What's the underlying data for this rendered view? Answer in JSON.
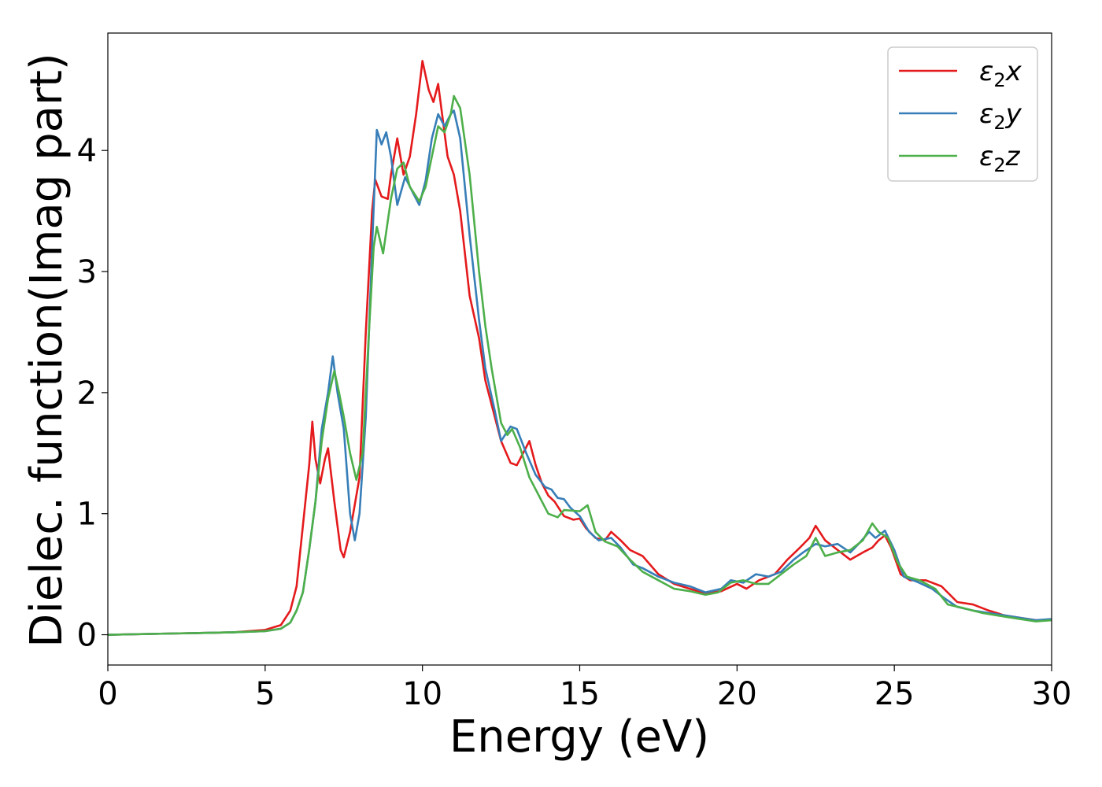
{
  "chart_data": {
    "type": "line",
    "title": "",
    "xlabel": "Energy (eV)",
    "ylabel": "Dielec. function(Imag part)",
    "xlim": [
      0,
      30
    ],
    "ylim": [
      -0.25,
      4.97
    ],
    "x_ticks": [
      0,
      5,
      10,
      15,
      20,
      25,
      30
    ],
    "y_ticks": [
      0,
      1,
      2,
      3,
      4
    ],
    "x_tick_labels": [
      "0",
      "5",
      "10",
      "15",
      "20",
      "25",
      "30"
    ],
    "y_tick_labels": [
      "0",
      "1",
      "2",
      "3",
      "4"
    ],
    "grid": false,
    "legend_position": "top-right",
    "series": [
      {
        "name": "ε2x",
        "legend_base": "ε",
        "legend_sub": "2",
        "legend_var": "x",
        "color": "#e41a1c",
        "points": [
          [
            0,
            0
          ],
          [
            2,
            0.01
          ],
          [
            4,
            0.02
          ],
          [
            5,
            0.04
          ],
          [
            5.5,
            0.08
          ],
          [
            5.8,
            0.2
          ],
          [
            6,
            0.4
          ],
          [
            6.2,
            0.9
          ],
          [
            6.4,
            1.4
          ],
          [
            6.5,
            1.76
          ],
          [
            6.6,
            1.45
          ],
          [
            6.75,
            1.25
          ],
          [
            6.9,
            1.45
          ],
          [
            7.0,
            1.54
          ],
          [
            7.2,
            1.1
          ],
          [
            7.4,
            0.7
          ],
          [
            7.5,
            0.64
          ],
          [
            7.7,
            0.85
          ],
          [
            8.0,
            1.3
          ],
          [
            8.2,
            2.5
          ],
          [
            8.4,
            3.5
          ],
          [
            8.5,
            3.76
          ],
          [
            8.7,
            3.62
          ],
          [
            8.9,
            3.6
          ],
          [
            9.0,
            3.8
          ],
          [
            9.2,
            4.1
          ],
          [
            9.4,
            3.8
          ],
          [
            9.6,
            3.95
          ],
          [
            9.8,
            4.3
          ],
          [
            10.0,
            4.74
          ],
          [
            10.2,
            4.5
          ],
          [
            10.35,
            4.4
          ],
          [
            10.5,
            4.55
          ],
          [
            10.6,
            4.35
          ],
          [
            10.8,
            3.95
          ],
          [
            11.0,
            3.8
          ],
          [
            11.2,
            3.5
          ],
          [
            11.5,
            2.8
          ],
          [
            11.8,
            2.45
          ],
          [
            12.0,
            2.1
          ],
          [
            12.3,
            1.8
          ],
          [
            12.5,
            1.6
          ],
          [
            12.8,
            1.42
          ],
          [
            13.0,
            1.4
          ],
          [
            13.2,
            1.5
          ],
          [
            13.4,
            1.6
          ],
          [
            13.6,
            1.4
          ],
          [
            13.8,
            1.25
          ],
          [
            14.0,
            1.15
          ],
          [
            14.2,
            1.1
          ],
          [
            14.5,
            0.98
          ],
          [
            14.8,
            0.95
          ],
          [
            15.0,
            0.96
          ],
          [
            15.2,
            0.88
          ],
          [
            15.5,
            0.8
          ],
          [
            15.8,
            0.78
          ],
          [
            16.0,
            0.85
          ],
          [
            16.3,
            0.78
          ],
          [
            16.6,
            0.7
          ],
          [
            17.0,
            0.65
          ],
          [
            17.5,
            0.5
          ],
          [
            18.0,
            0.42
          ],
          [
            18.5,
            0.38
          ],
          [
            19.0,
            0.34
          ],
          [
            19.5,
            0.36
          ],
          [
            20.0,
            0.42
          ],
          [
            20.3,
            0.38
          ],
          [
            20.7,
            0.45
          ],
          [
            21.2,
            0.5
          ],
          [
            21.6,
            0.62
          ],
          [
            22.0,
            0.72
          ],
          [
            22.3,
            0.8
          ],
          [
            22.5,
            0.9
          ],
          [
            22.8,
            0.78
          ],
          [
            23.2,
            0.7
          ],
          [
            23.6,
            0.62
          ],
          [
            24.0,
            0.68
          ],
          [
            24.3,
            0.72
          ],
          [
            24.5,
            0.78
          ],
          [
            24.7,
            0.82
          ],
          [
            24.9,
            0.72
          ],
          [
            25.2,
            0.5
          ],
          [
            25.5,
            0.45
          ],
          [
            26.0,
            0.45
          ],
          [
            26.5,
            0.4
          ],
          [
            27.0,
            0.27
          ],
          [
            27.5,
            0.25
          ],
          [
            28.0,
            0.2
          ],
          [
            28.5,
            0.16
          ],
          [
            29.0,
            0.14
          ],
          [
            29.5,
            0.12
          ],
          [
            30.0,
            0.12
          ]
        ]
      },
      {
        "name": "ε2y",
        "legend_base": "ε",
        "legend_sub": "2",
        "legend_var": "y",
        "color": "#377eb8",
        "points": [
          [
            0,
            0
          ],
          [
            2,
            0.01
          ],
          [
            4,
            0.02
          ],
          [
            5,
            0.03
          ],
          [
            5.5,
            0.05
          ],
          [
            5.8,
            0.1
          ],
          [
            6,
            0.2
          ],
          [
            6.2,
            0.35
          ],
          [
            6.4,
            0.7
          ],
          [
            6.6,
            1.1
          ],
          [
            6.8,
            1.7
          ],
          [
            7.0,
            2.0
          ],
          [
            7.15,
            2.3
          ],
          [
            7.3,
            2.0
          ],
          [
            7.5,
            1.7
          ],
          [
            7.7,
            1.0
          ],
          [
            7.85,
            0.78
          ],
          [
            8.0,
            1.0
          ],
          [
            8.2,
            1.8
          ],
          [
            8.4,
            3.2
          ],
          [
            8.55,
            4.17
          ],
          [
            8.7,
            4.05
          ],
          [
            8.85,
            4.15
          ],
          [
            9.0,
            3.95
          ],
          [
            9.2,
            3.55
          ],
          [
            9.45,
            3.78
          ],
          [
            9.7,
            3.65
          ],
          [
            9.9,
            3.55
          ],
          [
            10.1,
            3.75
          ],
          [
            10.3,
            4.1
          ],
          [
            10.5,
            4.3
          ],
          [
            10.7,
            4.2
          ],
          [
            10.9,
            4.3
          ],
          [
            11.0,
            4.33
          ],
          [
            11.2,
            4.1
          ],
          [
            11.5,
            3.3
          ],
          [
            11.8,
            2.6
          ],
          [
            12.0,
            2.2
          ],
          [
            12.3,
            1.85
          ],
          [
            12.5,
            1.6
          ],
          [
            12.8,
            1.72
          ],
          [
            13.0,
            1.7
          ],
          [
            13.3,
            1.5
          ],
          [
            13.6,
            1.32
          ],
          [
            13.9,
            1.22
          ],
          [
            14.1,
            1.2
          ],
          [
            14.3,
            1.13
          ],
          [
            14.5,
            1.12
          ],
          [
            14.7,
            1.05
          ],
          [
            15.0,
            0.98
          ],
          [
            15.3,
            0.85
          ],
          [
            15.6,
            0.78
          ],
          [
            16.0,
            0.8
          ],
          [
            16.3,
            0.72
          ],
          [
            16.7,
            0.58
          ],
          [
            17.0,
            0.55
          ],
          [
            17.5,
            0.48
          ],
          [
            18.0,
            0.43
          ],
          [
            18.5,
            0.4
          ],
          [
            19.0,
            0.35
          ],
          [
            19.5,
            0.38
          ],
          [
            19.8,
            0.45
          ],
          [
            20.2,
            0.43
          ],
          [
            20.6,
            0.5
          ],
          [
            21.0,
            0.48
          ],
          [
            21.4,
            0.52
          ],
          [
            21.8,
            0.62
          ],
          [
            22.1,
            0.68
          ],
          [
            22.5,
            0.75
          ],
          [
            22.8,
            0.73
          ],
          [
            23.2,
            0.75
          ],
          [
            23.6,
            0.68
          ],
          [
            23.9,
            0.76
          ],
          [
            24.2,
            0.85
          ],
          [
            24.4,
            0.8
          ],
          [
            24.7,
            0.86
          ],
          [
            25.0,
            0.7
          ],
          [
            25.3,
            0.48
          ],
          [
            25.7,
            0.44
          ],
          [
            26.2,
            0.38
          ],
          [
            26.6,
            0.3
          ],
          [
            27.0,
            0.23
          ],
          [
            27.5,
            0.2
          ],
          [
            28.0,
            0.18
          ],
          [
            28.5,
            0.16
          ],
          [
            29.0,
            0.14
          ],
          [
            29.5,
            0.12
          ],
          [
            30.0,
            0.13
          ]
        ]
      },
      {
        "name": "ε2z",
        "legend_base": "ε",
        "legend_sub": "2",
        "legend_var": "z",
        "color": "#4daf4a",
        "points": [
          [
            0,
            0
          ],
          [
            2,
            0.01
          ],
          [
            4,
            0.02
          ],
          [
            5,
            0.03
          ],
          [
            5.5,
            0.05
          ],
          [
            5.8,
            0.1
          ],
          [
            6,
            0.2
          ],
          [
            6.2,
            0.35
          ],
          [
            6.4,
            0.7
          ],
          [
            6.6,
            1.1
          ],
          [
            6.8,
            1.6
          ],
          [
            7.0,
            1.95
          ],
          [
            7.2,
            2.18
          ],
          [
            7.35,
            2.0
          ],
          [
            7.5,
            1.8
          ],
          [
            7.7,
            1.5
          ],
          [
            7.9,
            1.28
          ],
          [
            8.1,
            1.5
          ],
          [
            8.3,
            2.5
          ],
          [
            8.45,
            3.2
          ],
          [
            8.55,
            3.37
          ],
          [
            8.75,
            3.15
          ],
          [
            9.0,
            3.6
          ],
          [
            9.2,
            3.85
          ],
          [
            9.4,
            3.9
          ],
          [
            9.6,
            3.7
          ],
          [
            9.9,
            3.58
          ],
          [
            10.1,
            3.7
          ],
          [
            10.3,
            3.95
          ],
          [
            10.5,
            4.2
          ],
          [
            10.7,
            4.15
          ],
          [
            10.9,
            4.3
          ],
          [
            11.0,
            4.45
          ],
          [
            11.2,
            4.35
          ],
          [
            11.5,
            3.8
          ],
          [
            11.8,
            3.0
          ],
          [
            12.0,
            2.55
          ],
          [
            12.2,
            2.2
          ],
          [
            12.5,
            1.75
          ],
          [
            12.7,
            1.65
          ],
          [
            12.85,
            1.7
          ],
          [
            13.1,
            1.55
          ],
          [
            13.4,
            1.3
          ],
          [
            13.7,
            1.15
          ],
          [
            14.0,
            1.0
          ],
          [
            14.3,
            0.97
          ],
          [
            14.5,
            1.03
          ],
          [
            15.0,
            1.02
          ],
          [
            15.25,
            1.07
          ],
          [
            15.5,
            0.85
          ],
          [
            15.8,
            0.77
          ],
          [
            16.2,
            0.73
          ],
          [
            16.6,
            0.62
          ],
          [
            17.0,
            0.52
          ],
          [
            17.5,
            0.45
          ],
          [
            18.0,
            0.38
          ],
          [
            18.5,
            0.36
          ],
          [
            19.0,
            0.33
          ],
          [
            19.4,
            0.35
          ],
          [
            19.8,
            0.43
          ],
          [
            20.2,
            0.45
          ],
          [
            20.6,
            0.42
          ],
          [
            21.0,
            0.42
          ],
          [
            21.4,
            0.5
          ],
          [
            21.8,
            0.58
          ],
          [
            22.2,
            0.65
          ],
          [
            22.5,
            0.8
          ],
          [
            22.8,
            0.65
          ],
          [
            23.2,
            0.68
          ],
          [
            23.6,
            0.7
          ],
          [
            24.0,
            0.78
          ],
          [
            24.3,
            0.92
          ],
          [
            24.5,
            0.85
          ],
          [
            24.8,
            0.8
          ],
          [
            25.1,
            0.6
          ],
          [
            25.4,
            0.48
          ],
          [
            25.8,
            0.45
          ],
          [
            26.3,
            0.38
          ],
          [
            26.7,
            0.25
          ],
          [
            27.2,
            0.22
          ],
          [
            27.8,
            0.18
          ],
          [
            28.5,
            0.15
          ],
          [
            29.0,
            0.13
          ],
          [
            29.5,
            0.11
          ],
          [
            30.0,
            0.12
          ]
        ]
      }
    ]
  }
}
